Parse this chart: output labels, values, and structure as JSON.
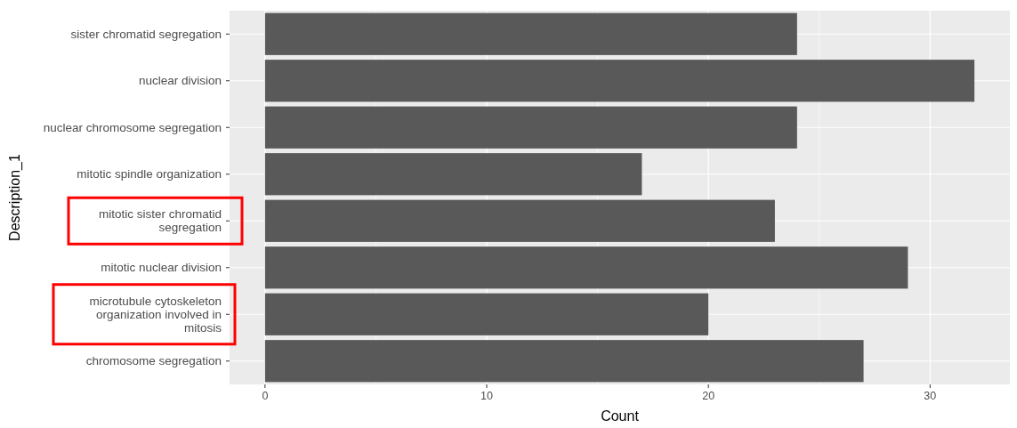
{
  "chart_data": {
    "type": "bar",
    "orientation": "horizontal",
    "xlabel": "Count",
    "ylabel": "Description_1",
    "categories": [
      "sister chromatid segregation",
      "nuclear division",
      "nuclear chromosome segregation",
      "mitotic spindle organization",
      "mitotic sister chromatid\nsegregation",
      "mitotic nuclear division",
      "microtubule cytoskeleton\norganization involved in\nmitosis",
      "chromosome segregation"
    ],
    "values": [
      24,
      32,
      24,
      17,
      23,
      29,
      20,
      27
    ],
    "color": "#595959",
    "xlim": [
      -1.6,
      33.6
    ],
    "xticks": [
      0,
      10,
      20,
      30
    ],
    "grid": true
  }
}
